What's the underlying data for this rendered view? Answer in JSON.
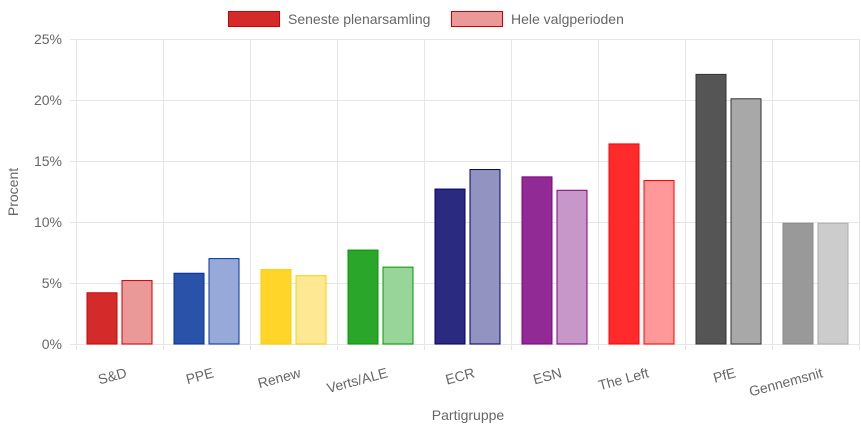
{
  "chart_data": {
    "type": "bar",
    "categories": [
      "S&D",
      "PPE",
      "Renew",
      "Verts/ALE",
      "ECR",
      "ESN",
      "The Left",
      "PfE",
      "Gennemsnit"
    ],
    "series": [
      {
        "name": "Seneste plenarsamling",
        "values": [
          4.2,
          5.8,
          6.1,
          7.7,
          12.7,
          13.7,
          16.4,
          22.1,
          9.9
        ]
      },
      {
        "name": "Hele valgperioden",
        "values": [
          5.2,
          7.0,
          5.6,
          6.3,
          14.3,
          12.6,
          13.4,
          20.1,
          9.9
        ]
      }
    ],
    "xlabel": "Partigruppe",
    "ylabel": "Procent",
    "ylim": [
      0,
      25
    ],
    "yticks": [
      0,
      5,
      10,
      15,
      20,
      25
    ],
    "ytick_labels": [
      "0%",
      "5%",
      "10%",
      "15%",
      "20%",
      "25%"
    ],
    "grid": true,
    "legend": "top-center",
    "colors": {
      "Seneste plenarsamling": {
        "fill": [
          "#d42a2a",
          "#2a52a8",
          "#ffd52a",
          "#2aa62a",
          "#2a2a80",
          "#912a94",
          "#ff2a2a",
          "#555555",
          "#999999"
        ],
        "stroke": [
          "#cc0000",
          "#0033a0",
          "#ffcc00",
          "#009900",
          "#000066",
          "#800080",
          "#ff0000",
          "#333333",
          "#888888"
        ]
      },
      "Hele valgperioden": {
        "fill": [
          "#eb9898",
          "#97a9d6",
          "#ffe894",
          "#98d598",
          "#9393c2",
          "#c797c9",
          "#ff9898",
          "#a8a8a8",
          "#cccccc"
        ],
        "stroke": [
          "#cc0000",
          "#0033a0",
          "#ffcc00",
          "#009900",
          "#000066",
          "#800080",
          "#ff0000",
          "#333333",
          "#aaaaaa"
        ]
      },
      "legend": {
        "Seneste plenarsamling": {
          "fill": "#d42a2a",
          "stroke": "#cc0000"
        },
        "Hele valgperioden": {
          "fill": "#eb9898",
          "stroke": "#cc0000"
        }
      },
      "grid": "#e6e6e6",
      "text": "#666666"
    }
  }
}
